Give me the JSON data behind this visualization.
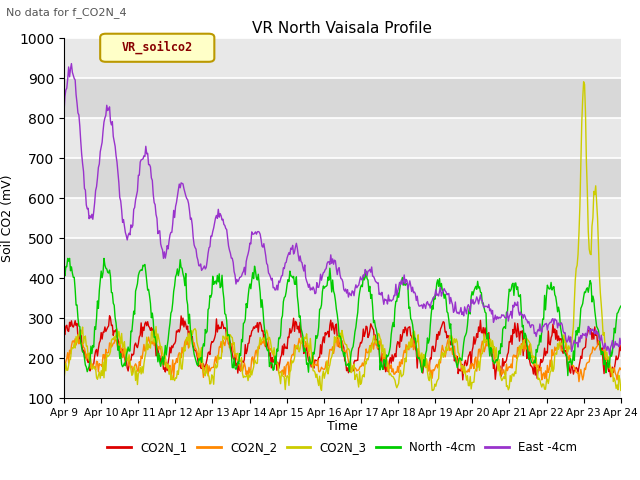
{
  "title": "VR North Vaisala Profile",
  "subtitle": "No data for f_CO2N_4",
  "ylabel": "Soil CO2 (mV)",
  "xlabel": "Time",
  "ylim": [
    100,
    1000
  ],
  "legend_label": "VR_soilco2",
  "series_labels": [
    "CO2N_1",
    "CO2N_2",
    "CO2N_3",
    "North -4cm",
    "East -4cm"
  ],
  "series_colors": [
    "#dd0000",
    "#ff8800",
    "#cccc00",
    "#00cc00",
    "#9933cc"
  ],
  "xtick_labels": [
    "Apr 9",
    "Apr 10",
    "Apr 11",
    "Apr 12",
    "Apr 13",
    "Apr 14",
    "Apr 15",
    "Apr 16",
    "Apr 17",
    "Apr 18",
    "Apr 19",
    "Apr 20",
    "Apr 21",
    "Apr 22",
    "Apr 23",
    "Apr 24"
  ],
  "background_color": "#ffffff",
  "plot_bg_color": "#e0e0e0",
  "grid_color": "#f0f0f0"
}
